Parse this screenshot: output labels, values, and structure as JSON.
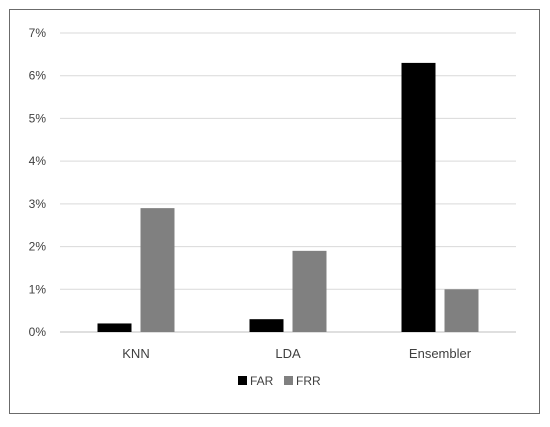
{
  "chart_data": {
    "type": "bar",
    "categories": [
      "KNN",
      "LDA",
      "Ensembler"
    ],
    "series": [
      {
        "name": "FAR",
        "values": [
          0.2,
          0.3,
          6.3
        ],
        "color": "#000000"
      },
      {
        "name": "FRR",
        "values": [
          2.9,
          1.9,
          1.0
        ],
        "color": "#808080"
      }
    ],
    "ylim": [
      0,
      7
    ],
    "yticks": [
      0,
      1,
      2,
      3,
      4,
      5,
      6,
      7
    ],
    "ytick_labels": [
      "0%",
      "1%",
      "2%",
      "3%",
      "4%",
      "5%",
      "6%",
      "7%"
    ],
    "grid": true,
    "legend_position": "bottom"
  }
}
